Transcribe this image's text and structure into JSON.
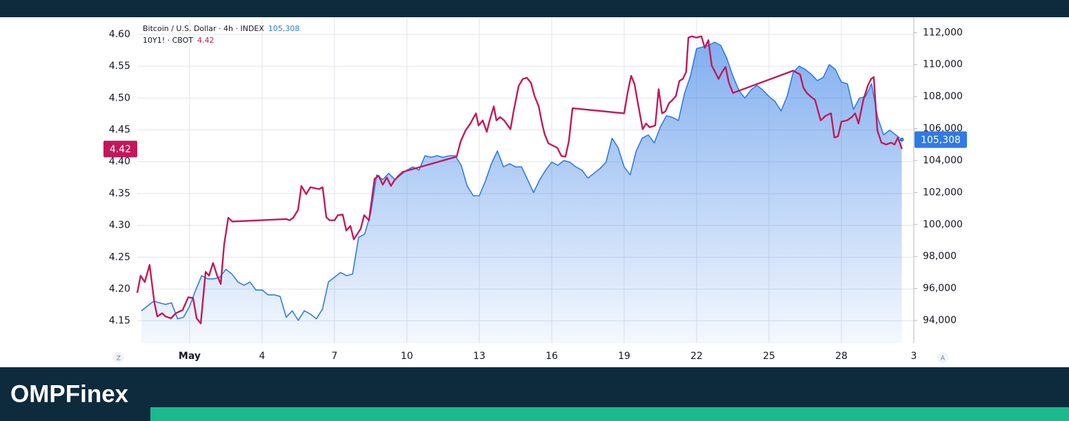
{
  "chart_data": {
    "type": "line",
    "series": [
      {
        "name": "Bitcoin / U.S. Dollar · 4h · INDEX",
        "color": "#2f7ae5",
        "axis": "y2",
        "area": true,
        "last_label": "105,308",
        "x": [
          -1,
          -0.75,
          -0.5,
          -0.25,
          0,
          0.25,
          0.5,
          0.75,
          1,
          1.25,
          1.5,
          1.75,
          2,
          2.25,
          2.5,
          2.75,
          3,
          3.25,
          3.5,
          3.75,
          4,
          4.25,
          4.5,
          4.75,
          5,
          5.25,
          5.5,
          5.75,
          6,
          6.25,
          6.5,
          6.75,
          7,
          7.25,
          7.5,
          7.75,
          8,
          8.25,
          8.5,
          8.75,
          9,
          9.25,
          9.5,
          9.75,
          10,
          10.25,
          10.5,
          10.75,
          11,
          11.25,
          11.5,
          11.75,
          12,
          12.25,
          12.5,
          12.75,
          13,
          13.25,
          13.5,
          13.75,
          14,
          14.25,
          14.5,
          14.75,
          15,
          15.25,
          15.5,
          15.75,
          16,
          16.25,
          16.5,
          16.75,
          17,
          17.25,
          17.5,
          17.75,
          18,
          18.25,
          18.5,
          18.75,
          19,
          19.25,
          19.5,
          19.75,
          20,
          20.25,
          20.5,
          20.75,
          21,
          21.25,
          21.5,
          21.75,
          22,
          22.25,
          22.5,
          22.75,
          23,
          23.25,
          23.5,
          23.75,
          24,
          24.25,
          24.5,
          24.75,
          25,
          25.25,
          25.5,
          25.75,
          26,
          26.25,
          26.5,
          26.75,
          27,
          27.25,
          27.5,
          27.75,
          28,
          28.25,
          28.5,
          28.75,
          29,
          29.25,
          29.5,
          29.75,
          30,
          30.25,
          30.5
        ],
        "values": [
          94600,
          94900,
          95200,
          95100,
          95000,
          95100,
          94100,
          94200,
          94900,
          95900,
          96800,
          96600,
          96600,
          96700,
          97200,
          96900,
          96400,
          96200,
          96400,
          95900,
          95900,
          95600,
          95600,
          95500,
          94200,
          94600,
          94000,
          94600,
          94400,
          94100,
          94700,
          96400,
          96700,
          97000,
          96800,
          96900,
          99200,
          99400,
          100700,
          103100,
          102800,
          103200,
          102800,
          103100,
          103400,
          103600,
          103400,
          104300,
          104200,
          104300,
          104200,
          104300,
          104300,
          103700,
          102400,
          101800,
          101800,
          102700,
          103800,
          104600,
          103600,
          103800,
          103600,
          103600,
          102800,
          102000,
          102800,
          103400,
          103900,
          103700,
          104000,
          103900,
          103600,
          103400,
          102900,
          103200,
          103500,
          103900,
          105400,
          104800,
          103600,
          103100,
          104600,
          105400,
          105600,
          105100,
          106100,
          106800,
          106700,
          106500,
          108200,
          109300,
          111000,
          111100,
          111200,
          111400,
          111200,
          110400,
          109300,
          108400,
          107900,
          108400,
          108700,
          108400,
          108000,
          107700,
          107100,
          108000,
          109500,
          109900,
          109700,
          109400,
          109000,
          109200,
          110000,
          109700,
          108900,
          108800,
          107200,
          107900,
          108000,
          108800,
          106700,
          105600,
          105900,
          105600,
          105308
        ]
      },
      {
        "name": "10Y1! · CBOT",
        "color": "#c2185b",
        "axis": "y",
        "last_label": "4.42",
        "x": [
          -1.17,
          -1.03,
          -0.86,
          -0.66,
          -0.46,
          -0.34,
          -0.14,
          0,
          0.23,
          0.43,
          0.71,
          0.94,
          1.14,
          1.29,
          1.46,
          1.66,
          1.8,
          1.97,
          2.14,
          2.29,
          2.43,
          2.6,
          2.77,
          5,
          5.14,
          5.29,
          5.49,
          5.63,
          5.83,
          6,
          6.23,
          6.37,
          6.51,
          6.66,
          6.8,
          7,
          7.14,
          7.34,
          7.49,
          7.66,
          7.8,
          7.94,
          8.09,
          8.23,
          8.43,
          8.66,
          8.83,
          9,
          9.17,
          9.34,
          9.49,
          9.66,
          9.83,
          12.06,
          12.23,
          12.43,
          12.63,
          12.86,
          12.97,
          13.14,
          13.31,
          13.43,
          13.6,
          13.71,
          13.86,
          14.03,
          14.29,
          14.43,
          14.63,
          14.8,
          14.97,
          15.14,
          15.29,
          15.46,
          15.6,
          15.71,
          15.86,
          16.06,
          16.23,
          16.4,
          16.57,
          16.71,
          16.86,
          19,
          19.14,
          19.29,
          19.43,
          19.57,
          19.77,
          19.91,
          20.06,
          20.29,
          20.43,
          20.57,
          20.71,
          20.86,
          21,
          21.14,
          21.29,
          21.43,
          21.57,
          21.66,
          21.8,
          22,
          22.2,
          22.34,
          22.49,
          22.63,
          22.77,
          22.91,
          23.06,
          23.2,
          23.34,
          23.51,
          26,
          26.29,
          26.43,
          26.57,
          26.71,
          26.91,
          27.14,
          27.34,
          27.57,
          27.71,
          27.86,
          28,
          28.23,
          28.43,
          28.57,
          28.71,
          28.91,
          29.09,
          29.23,
          29.34,
          29.49,
          29.66,
          29.86,
          30.06,
          30.2,
          30.34,
          30.51
        ],
        "values": [
          4.194,
          4.221,
          4.211,
          4.238,
          4.178,
          4.157,
          4.162,
          4.157,
          4.154,
          4.162,
          4.167,
          4.187,
          4.186,
          4.154,
          4.146,
          4.227,
          4.221,
          4.241,
          4.221,
          4.208,
          4.27,
          4.312,
          4.306,
          4.31,
          4.308,
          4.312,
          4.324,
          4.362,
          4.349,
          4.36,
          4.358,
          4.357,
          4.36,
          4.313,
          4.308,
          4.308,
          4.316,
          4.317,
          4.292,
          4.299,
          4.278,
          4.286,
          4.295,
          4.316,
          4.308,
          4.373,
          4.378,
          4.364,
          4.375,
          4.362,
          4.371,
          4.378,
          4.384,
          4.408,
          4.432,
          4.449,
          4.46,
          4.476,
          4.457,
          4.465,
          4.447,
          4.465,
          4.487,
          4.465,
          4.47,
          4.465,
          4.451,
          4.481,
          4.519,
          4.53,
          4.532,
          4.524,
          4.503,
          4.487,
          4.46,
          4.443,
          4.429,
          4.425,
          4.422,
          4.409,
          4.408,
          4.432,
          4.484,
          4.476,
          4.508,
          4.535,
          4.522,
          4.492,
          4.451,
          4.46,
          4.454,
          4.457,
          4.514,
          4.476,
          4.479,
          4.492,
          4.497,
          4.503,
          4.527,
          4.53,
          4.541,
          4.595,
          4.597,
          4.595,
          4.597,
          4.579,
          4.591,
          4.551,
          4.541,
          4.53,
          4.541,
          4.549,
          4.524,
          4.508,
          4.543,
          4.537,
          4.516,
          4.508,
          4.503,
          4.497,
          4.465,
          4.472,
          4.476,
          4.438,
          4.44,
          4.463,
          4.465,
          4.47,
          4.476,
          4.46,
          4.497,
          4.519,
          4.53,
          4.533,
          4.449,
          4.43,
          4.427,
          4.43,
          4.427,
          4.438,
          4.42
        ]
      }
    ],
    "xlim": [
      -1.17,
      31
    ],
    "xticks": [
      {
        "value": 1,
        "label": "May"
      },
      4,
      7,
      10,
      13,
      16,
      19,
      22,
      25,
      28,
      {
        "value": 31,
        "label": "3"
      }
    ],
    "ylim": [
      4.115,
      4.627
    ],
    "yticks": [
      4.15,
      {
        "value": 4.2,
        "label": "4.20"
      },
      4.25,
      {
        "value": 4.3,
        "label": "4.30"
      },
      4.35,
      {
        "value": 4.4,
        "label": "4.40"
      },
      4.45,
      {
        "value": 4.5,
        "label": "4.50"
      },
      4.55,
      {
        "value": 4.6,
        "label": "4.60"
      }
    ],
    "y2lim": [
      92580,
      112960
    ],
    "y2ticks": [
      {
        "value": 94000,
        "label": "94,000"
      },
      {
        "value": 96000,
        "label": "96,000"
      },
      {
        "value": 98000,
        "label": "98,000"
      },
      {
        "value": 100000,
        "label": "100,000"
      },
      {
        "value": 102000,
        "label": "102,000"
      },
      {
        "value": 104000,
        "label": "104,000"
      },
      {
        "value": 106000,
        "label": "106,000"
      },
      {
        "value": 108000,
        "label": "108,000"
      },
      {
        "value": 110000,
        "label": "110,000"
      },
      {
        "value": 112000,
        "label": "112,000"
      }
    ],
    "grid": true,
    "axis_buttons": {
      "left": "Z",
      "right": "A"
    }
  },
  "brand": "OMPFinex"
}
